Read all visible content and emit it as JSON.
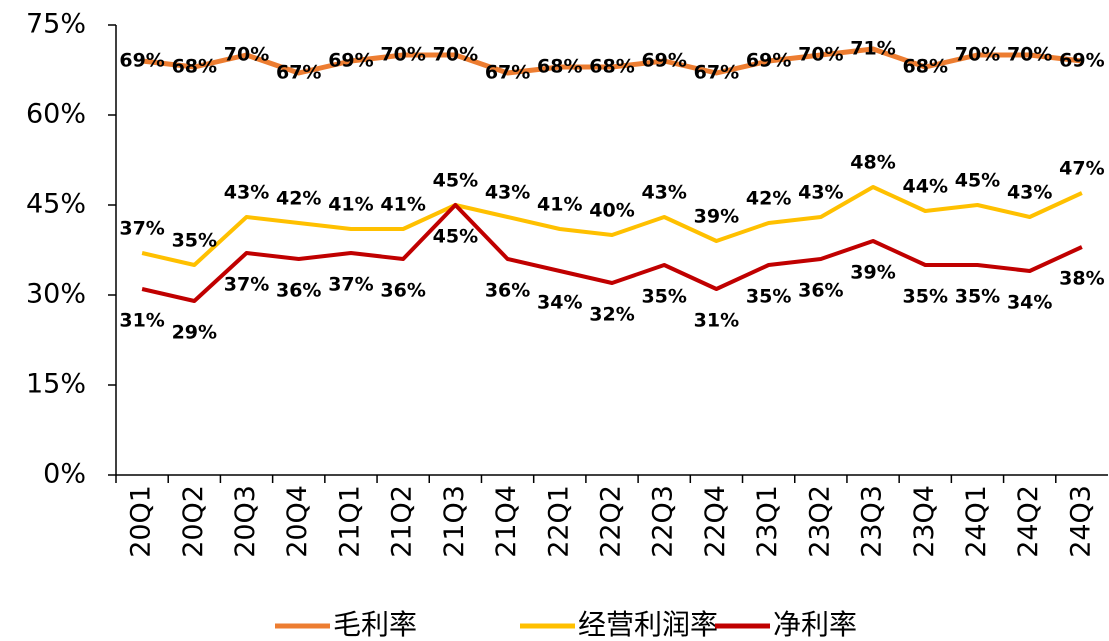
{
  "chart_data": {
    "type": "line",
    "categories": [
      "20Q1",
      "20Q2",
      "20Q3",
      "20Q4",
      "21Q1",
      "21Q2",
      "21Q3",
      "21Q4",
      "22Q1",
      "22Q2",
      "22Q3",
      "22Q4",
      "23Q1",
      "23Q2",
      "23Q3",
      "23Q4",
      "24Q1",
      "24Q2",
      "24Q3"
    ],
    "series": [
      {
        "name": "毛利率",
        "color": "#ED7D31",
        "values": [
          69,
          68,
          70,
          67,
          69,
          70,
          70,
          67,
          68,
          68,
          69,
          67,
          69,
          70,
          71,
          68,
          70,
          70,
          69
        ],
        "value_labels": [
          "69%",
          "68%",
          "70%",
          "67%",
          "69%",
          "70%",
          "70%",
          "67%",
          "68%",
          "68%",
          "69%",
          "67%",
          "69%",
          "70%",
          "71%",
          "68%",
          "70%",
          "70%",
          "69%"
        ]
      },
      {
        "name": "经营利润率",
        "color": "#FFC000",
        "values": [
          37,
          35,
          43,
          42,
          41,
          41,
          45,
          43,
          41,
          40,
          43,
          39,
          42,
          43,
          48,
          44,
          45,
          43,
          47
        ],
        "value_labels": [
          "37%",
          "35%",
          "43%",
          "42%",
          "41%",
          "41%",
          "45%",
          "43%",
          "41%",
          "40%",
          "43%",
          "39%",
          "42%",
          "43%",
          "48%",
          "44%",
          "45%",
          "43%",
          "47%"
        ]
      },
      {
        "name": "净利率",
        "color": "#C00000",
        "values": [
          31,
          29,
          37,
          36,
          37,
          36,
          45,
          36,
          34,
          32,
          35,
          31,
          35,
          36,
          39,
          35,
          35,
          34,
          38
        ],
        "value_labels": [
          "31%",
          "29%",
          "37%",
          "36%",
          "37%",
          "36%",
          "45%",
          "36%",
          "34%",
          "32%",
          "35%",
          "31%",
          "35%",
          "36%",
          "39%",
          "35%",
          "35%",
          "34%",
          "38%"
        ]
      }
    ],
    "ylim": [
      0,
      75
    ],
    "yticks": [
      {
        "value": 0,
        "label": "0%"
      },
      {
        "value": 15,
        "label": "15%"
      },
      {
        "value": 30,
        "label": "30%"
      },
      {
        "value": 45,
        "label": "45%"
      },
      {
        "value": 60,
        "label": "60%"
      },
      {
        "value": 75,
        "label": "75%"
      }
    ],
    "legend": "bottom"
  }
}
